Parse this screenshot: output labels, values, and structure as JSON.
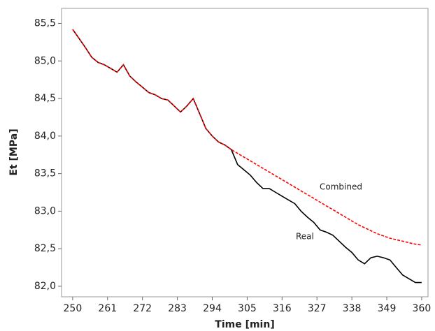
{
  "chart_data": {
    "type": "line",
    "x_label": "Time [min]",
    "y_label": "Et [MPa]",
    "x": [
      250,
      252,
      254,
      256,
      258,
      260,
      262,
      264,
      266,
      268,
      270,
      272,
      274,
      276,
      278,
      280,
      282,
      284,
      286,
      288,
      290,
      292,
      294,
      296,
      298,
      300,
      302,
      304,
      306,
      308,
      310,
      312,
      314,
      316,
      318,
      320,
      322,
      324,
      326,
      328,
      330,
      332,
      334,
      336,
      338,
      340,
      342,
      344,
      346,
      348,
      350,
      352,
      354,
      356,
      358,
      360
    ],
    "series": [
      {
        "name": "Real",
        "color": "#000000",
        "linestyle": "solid",
        "values": [
          85.42,
          85.3,
          85.18,
          85.05,
          84.98,
          84.95,
          84.9,
          84.85,
          84.95,
          84.8,
          84.72,
          84.65,
          84.58,
          84.55,
          84.5,
          84.48,
          84.4,
          84.32,
          84.4,
          84.5,
          84.3,
          84.1,
          84.0,
          83.92,
          83.88,
          83.82,
          83.62,
          83.55,
          83.48,
          83.38,
          83.3,
          83.3,
          83.25,
          83.2,
          83.15,
          83.1,
          83.0,
          82.92,
          82.85,
          82.75,
          82.72,
          82.68,
          82.6,
          82.52,
          82.45,
          82.35,
          82.3,
          82.38,
          82.4,
          82.38,
          82.35,
          82.25,
          82.15,
          82.1,
          82.05,
          82.05
        ]
      },
      {
        "name": "Combined",
        "color": "#ff0000",
        "linestyle": "dashed",
        "values": [
          85.42,
          85.3,
          85.18,
          85.05,
          84.98,
          84.95,
          84.9,
          84.85,
          84.95,
          84.8,
          84.72,
          84.65,
          84.58,
          84.55,
          84.5,
          84.48,
          84.4,
          84.32,
          84.4,
          84.5,
          84.3,
          84.1,
          84.0,
          83.92,
          83.88,
          83.82,
          83.77,
          83.72,
          83.67,
          83.62,
          83.57,
          83.52,
          83.47,
          83.42,
          83.37,
          83.32,
          83.27,
          83.22,
          83.17,
          83.12,
          83.07,
          83.02,
          82.97,
          82.92,
          82.87,
          82.82,
          82.78,
          82.74,
          82.7,
          82.67,
          82.64,
          82.62,
          82.6,
          82.58,
          82.56,
          82.55
        ]
      }
    ],
    "xlim": [
      246.5,
      362
    ],
    "ylim": [
      81.86,
      85.7
    ],
    "xticks": [
      250,
      261,
      272,
      283,
      294,
      305,
      316,
      327,
      338,
      349,
      360
    ],
    "yticks": [
      {
        "value": 82.0,
        "label": "82,0"
      },
      {
        "value": 82.5,
        "label": "82,5"
      },
      {
        "value": 83.0,
        "label": "83,0"
      },
      {
        "value": 83.5,
        "label": "83,5"
      },
      {
        "value": 84.0,
        "label": "84,0"
      },
      {
        "value": 84.5,
        "label": "84,5"
      },
      {
        "value": 85.0,
        "label": "85,0"
      },
      {
        "value": 85.5,
        "label": "85,5"
      }
    ],
    "grid": false
  }
}
